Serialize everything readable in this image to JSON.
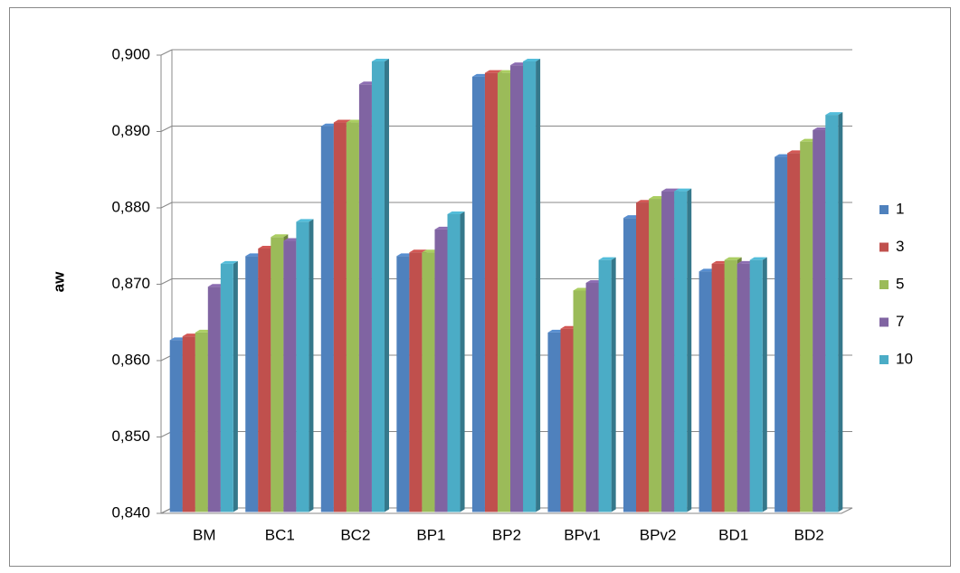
{
  "chart_data": {
    "type": "bar3d",
    "y_label": "aw",
    "categories": [
      "BM",
      "BC1",
      "BC2",
      "BP1",
      "BP2",
      "BPv1",
      "BPv2",
      "BD1",
      "BD2"
    ],
    "series": [
      {
        "name": "1",
        "color": "#4f81bd",
        "values": [
          0.8625,
          0.8735,
          0.8905,
          0.8735,
          0.897,
          0.8635,
          0.8785,
          0.8715,
          0.8865
        ]
      },
      {
        "name": "3",
        "color": "#c0504d",
        "values": [
          0.863,
          0.8745,
          0.891,
          0.874,
          0.8975,
          0.864,
          0.8805,
          0.8725,
          0.887
        ]
      },
      {
        "name": "5",
        "color": "#9bbb59",
        "values": [
          0.8635,
          0.876,
          0.891,
          0.874,
          0.8975,
          0.869,
          0.881,
          0.873,
          0.8885
        ]
      },
      {
        "name": "7",
        "color": "#8064a2",
        "values": [
          0.8695,
          0.8755,
          0.896,
          0.877,
          0.8985,
          0.87,
          0.882,
          0.8725,
          0.89
        ]
      },
      {
        "name": "10",
        "color": "#4bacc6",
        "values": [
          0.8725,
          0.878,
          0.899,
          0.879,
          0.899,
          0.873,
          0.882,
          0.873,
          0.892
        ]
      }
    ],
    "ylim": [
      0.84,
      0.9
    ],
    "yticks": [
      {
        "value": 0.84,
        "label": "0,840"
      },
      {
        "value": 0.85,
        "label": "0,850"
      },
      {
        "value": 0.86,
        "label": "0,860"
      },
      {
        "value": 0.87,
        "label": "0,870"
      },
      {
        "value": 0.88,
        "label": "0,880"
      },
      {
        "value": 0.89,
        "label": "0,890"
      },
      {
        "value": 0.9,
        "label": "0,900"
      }
    ],
    "grid": true,
    "legend": "right"
  }
}
